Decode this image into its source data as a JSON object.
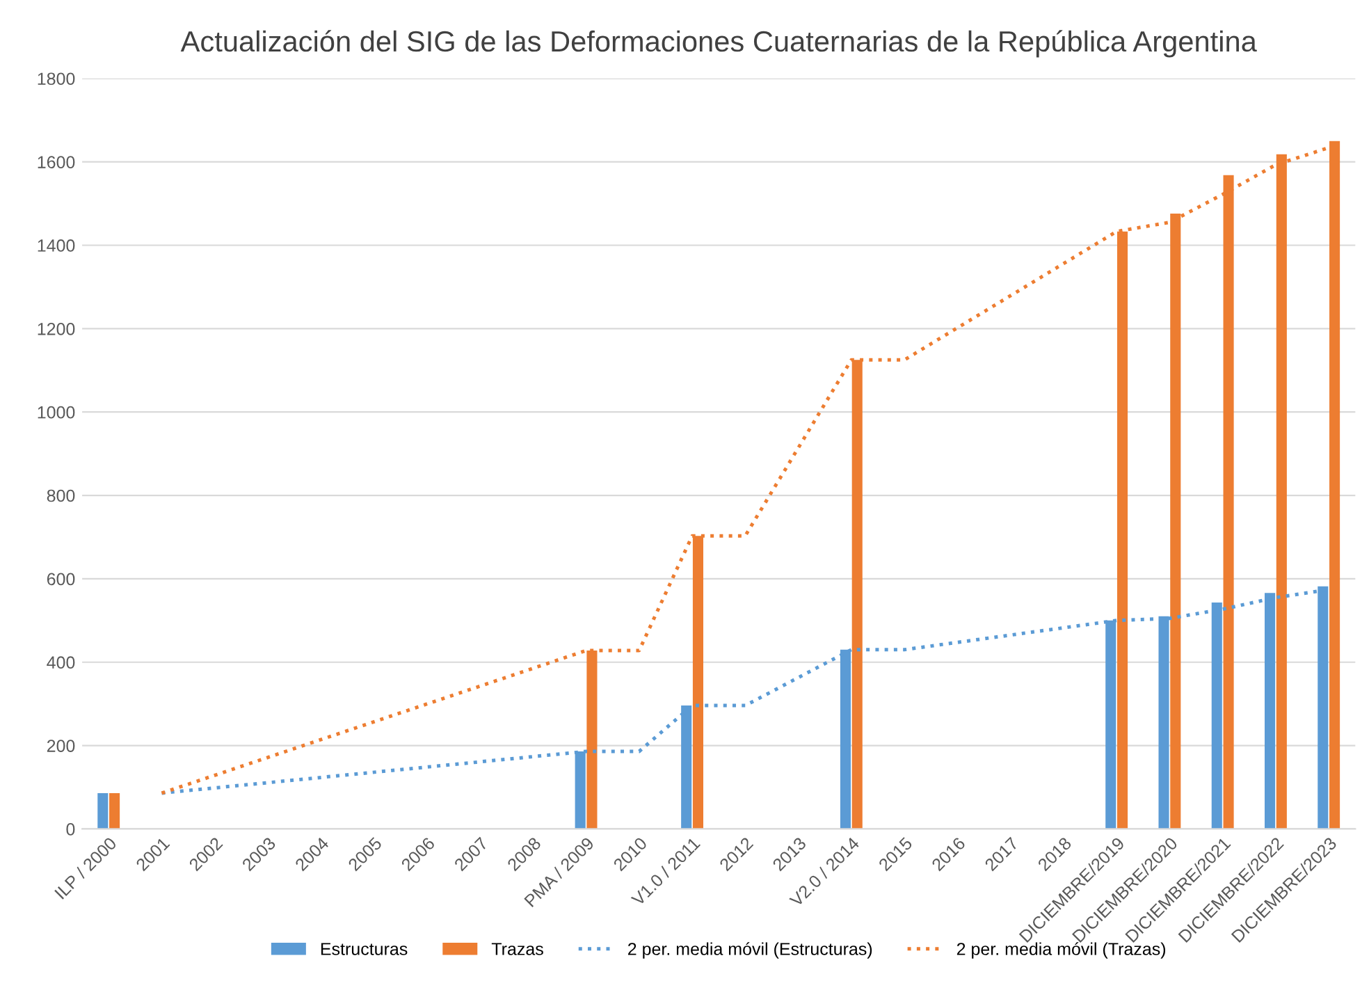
{
  "chart_data": {
    "type": "bar",
    "title": "Actualización del SIG de las Deformaciones Cuaternarias de la República Argentina",
    "categories": [
      "ILP / 2000",
      "2001",
      "2002",
      "2003",
      "2004",
      "2005",
      "2006",
      "2007",
      "2008",
      "PMA / 2009",
      "2010",
      "V1.0 / 2011",
      "2012",
      "2013",
      "V2.0 / 2014",
      "2015",
      "2016",
      "2017",
      "2018",
      "DICIEMBRE/2019",
      "DICIEMBRE/2020",
      "DICIEMBRE/2021",
      "DICIEMBRE/2022",
      "DICIEMBRE/2023"
    ],
    "series": [
      {
        "name": "Estructuras",
        "color": "#5b9bd5",
        "values": [
          86,
          null,
          null,
          null,
          null,
          null,
          null,
          null,
          null,
          186,
          null,
          296,
          null,
          null,
          430,
          null,
          null,
          null,
          null,
          500,
          510,
          543,
          566,
          582
        ]
      },
      {
        "name": "Trazas",
        "color": "#ed7d31",
        "values": [
          86,
          null,
          null,
          null,
          null,
          null,
          null,
          null,
          null,
          428,
          null,
          703,
          null,
          null,
          1125,
          null,
          null,
          null,
          null,
          1433,
          1476,
          1568,
          1618,
          1650
        ]
      },
      {
        "name": "2 per. media móvil (Estructuras)",
        "type": "line",
        "line_style": "dotted",
        "color": "#5b9bd5",
        "values": [
          null,
          86,
          null,
          null,
          null,
          null,
          null,
          null,
          null,
          186,
          186,
          296,
          296,
          null,
          430,
          430,
          null,
          null,
          null,
          500,
          505,
          527,
          555,
          574
        ]
      },
      {
        "name": "2 per. media móvil (Trazas)",
        "type": "line",
        "line_style": "dotted",
        "color": "#ed7d31",
        "values": [
          null,
          86,
          null,
          null,
          null,
          null,
          null,
          null,
          null,
          428,
          428,
          703,
          703,
          null,
          1125,
          1125,
          null,
          null,
          null,
          1433,
          1455,
          1522,
          1593,
          1634
        ]
      }
    ],
    "ylim": [
      0,
      1800
    ],
    "yticks": [
      0,
      200,
      400,
      600,
      800,
      1000,
      1200,
      1400,
      1600,
      1800
    ],
    "grid": "y",
    "legend": "bottom"
  }
}
